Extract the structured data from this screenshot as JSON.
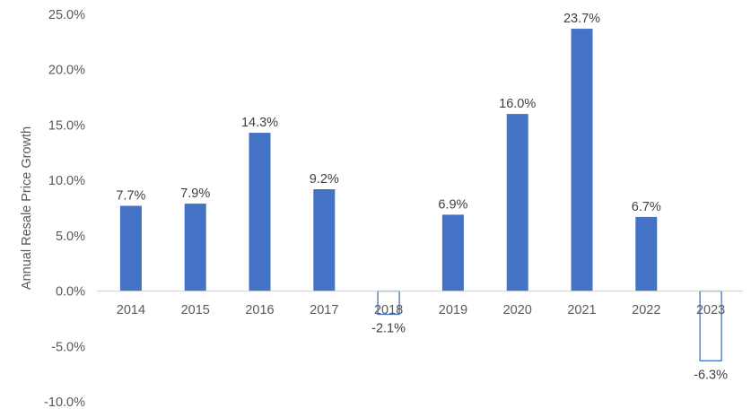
{
  "chart_data": {
    "type": "bar",
    "title": "",
    "xlabel": "",
    "ylabel": "Annual Resale Price Growth",
    "categories": [
      "2014",
      "2015",
      "2016",
      "2017",
      "2018",
      "2019",
      "2020",
      "2021",
      "2022",
      "2023"
    ],
    "values": [
      7.7,
      7.9,
      14.3,
      9.2,
      -2.1,
      6.9,
      16.0,
      23.7,
      6.7,
      -6.3
    ],
    "data_labels": [
      "7.7%",
      "7.9%",
      "14.3%",
      "9.2%",
      "-2.1%",
      "6.9%",
      "16.0%",
      "23.7%",
      "6.7%",
      "-6.3%"
    ],
    "ylim": [
      -10,
      25
    ],
    "yticks": [
      25,
      20,
      15,
      10,
      5,
      0,
      -5,
      -10
    ],
    "ytick_labels": [
      "25.0%",
      "20.0%",
      "15.0%",
      "10.0%",
      "5.0%",
      "0.0%",
      "-5.0%",
      "-10.0%"
    ],
    "bar_color": "#4472C4",
    "negative_style": "outline",
    "grid": false,
    "legend": "none"
  }
}
